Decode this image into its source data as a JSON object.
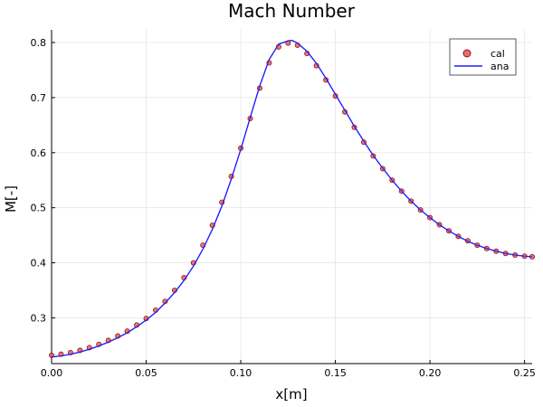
{
  "chart_data": {
    "type": "line",
    "title": "Mach Number",
    "xlabel": "x[m]",
    "ylabel": "M[-]",
    "xlim": [
      0.0,
      0.254
    ],
    "ylim": [
      0.217,
      0.823
    ],
    "xticks": [
      0.0,
      0.05,
      0.1,
      0.15,
      0.2,
      0.25
    ],
    "xtick_labels": [
      "0.00",
      "0.05",
      "0.10",
      "0.15",
      "0.20",
      "0.25"
    ],
    "yticks": [
      0.3,
      0.4,
      0.5,
      0.6,
      0.7,
      0.8
    ],
    "ytick_labels": [
      "0.3",
      "0.4",
      "0.5",
      "0.6",
      "0.7",
      "0.8"
    ],
    "grid": true,
    "legend_position": "top-right",
    "series": [
      {
        "name": "cal",
        "kind": "scatter",
        "color": "#e8534f",
        "edge_color": "#8b1a1a",
        "x": [
          0.0,
          0.005,
          0.01,
          0.015,
          0.02,
          0.025,
          0.03,
          0.035,
          0.04,
          0.045,
          0.05,
          0.055,
          0.06,
          0.065,
          0.07,
          0.075,
          0.08,
          0.085,
          0.09,
          0.095,
          0.1,
          0.105,
          0.11,
          0.115,
          0.12,
          0.125,
          0.13,
          0.135,
          0.14,
          0.145,
          0.15,
          0.155,
          0.16,
          0.165,
          0.17,
          0.175,
          0.18,
          0.185,
          0.19,
          0.195,
          0.2,
          0.205,
          0.21,
          0.215,
          0.22,
          0.225,
          0.23,
          0.235,
          0.24,
          0.245,
          0.25,
          0.254
        ],
        "y": [
          0.232,
          0.234,
          0.237,
          0.241,
          0.246,
          0.252,
          0.259,
          0.267,
          0.276,
          0.287,
          0.299,
          0.314,
          0.33,
          0.35,
          0.373,
          0.4,
          0.432,
          0.468,
          0.51,
          0.557,
          0.608,
          0.662,
          0.717,
          0.763,
          0.792,
          0.799,
          0.795,
          0.78,
          0.758,
          0.732,
          0.703,
          0.674,
          0.646,
          0.619,
          0.594,
          0.571,
          0.55,
          0.53,
          0.512,
          0.496,
          0.482,
          0.469,
          0.458,
          0.448,
          0.44,
          0.432,
          0.426,
          0.421,
          0.417,
          0.414,
          0.412,
          0.411
        ]
      },
      {
        "name": "ana",
        "kind": "line",
        "color": "#1f1fff",
        "x": [
          0.0,
          0.005,
          0.01,
          0.015,
          0.02,
          0.025,
          0.03,
          0.035,
          0.04,
          0.045,
          0.05,
          0.055,
          0.06,
          0.065,
          0.07,
          0.075,
          0.08,
          0.085,
          0.09,
          0.095,
          0.1,
          0.105,
          0.11,
          0.115,
          0.12,
          0.125,
          0.127,
          0.13,
          0.135,
          0.14,
          0.145,
          0.15,
          0.155,
          0.16,
          0.165,
          0.17,
          0.175,
          0.18,
          0.185,
          0.19,
          0.195,
          0.2,
          0.205,
          0.21,
          0.215,
          0.22,
          0.225,
          0.23,
          0.235,
          0.24,
          0.245,
          0.25,
          0.254
        ],
        "y": [
          0.229,
          0.231,
          0.234,
          0.238,
          0.243,
          0.249,
          0.256,
          0.264,
          0.273,
          0.284,
          0.296,
          0.31,
          0.327,
          0.346,
          0.368,
          0.394,
          0.425,
          0.461,
          0.503,
          0.552,
          0.606,
          0.664,
          0.721,
          0.769,
          0.797,
          0.803,
          0.804,
          0.799,
          0.784,
          0.762,
          0.735,
          0.706,
          0.677,
          0.648,
          0.621,
          0.595,
          0.572,
          0.55,
          0.53,
          0.512,
          0.496,
          0.482,
          0.469,
          0.458,
          0.448,
          0.439,
          0.432,
          0.426,
          0.421,
          0.417,
          0.414,
          0.412,
          0.411
        ]
      }
    ]
  }
}
